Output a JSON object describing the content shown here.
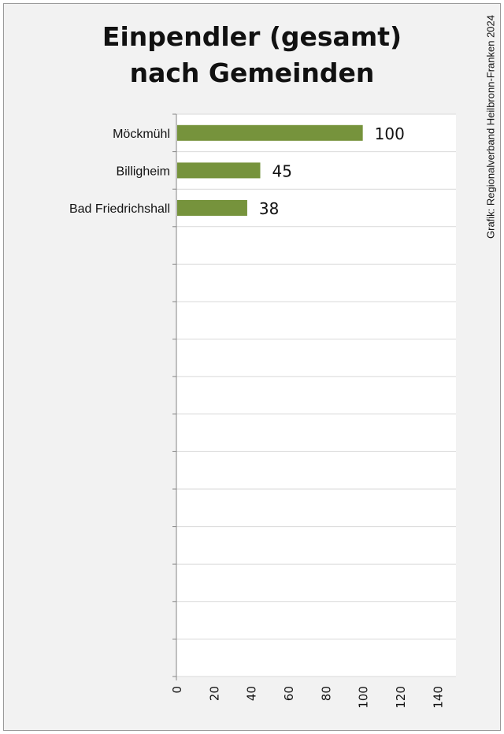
{
  "chart_data": {
    "type": "bar",
    "orientation": "horizontal",
    "title_lines": [
      "Einpendler (gesamt)",
      "nach Gemeinden"
    ],
    "source_note": "Grafik: Regionalverband Heilbronn-Franken 2024",
    "categories": [
      "Möckmühl",
      "Billigheim",
      "Bad Friedrichshall"
    ],
    "values": [
      100,
      45,
      38
    ],
    "data_labels": [
      "100",
      "45",
      "38"
    ],
    "xlim": [
      0,
      150
    ],
    "xticks": [
      "0",
      "20",
      "40",
      "60",
      "80",
      "100",
      "120",
      "140"
    ],
    "tick_values": [
      0,
      20,
      40,
      60,
      80,
      100,
      120,
      140
    ],
    "category_slots": 15,
    "xlabel": "",
    "ylabel": "",
    "grid": true,
    "bar_color": "#76933c",
    "background_color": "#f2f2f2",
    "plot_background_color": "#ffffff",
    "gridline_color": "#d9d9d9"
  }
}
